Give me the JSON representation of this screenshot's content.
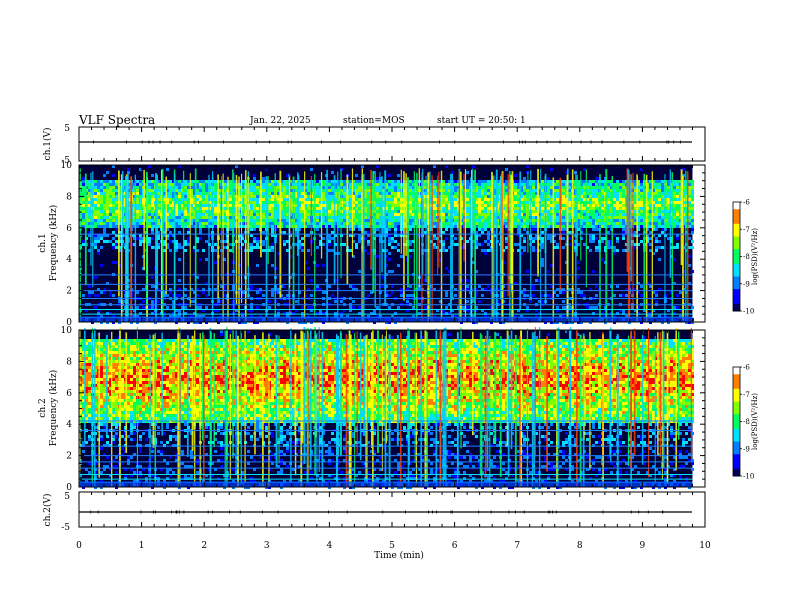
{
  "header": {
    "title": "VLF Spectra",
    "date": "Jan. 22, 2025",
    "station": "station=MOS",
    "start": "start UT =  20:50: 1"
  },
  "chart_data": [
    {
      "type": "line",
      "panel": "ch1-waveform",
      "ylabel": "ch.1(V)",
      "ylim": [
        -5,
        5
      ],
      "yticks": [
        "5",
        "-5"
      ],
      "series": [
        {
          "values": [
            0,
            0
          ]
        }
      ],
      "x": [
        0,
        9.8
      ]
    },
    {
      "type": "heatmap",
      "panel": "ch1-spectrogram",
      "ylabel_line1": "ch.1",
      "ylabel_line2": "Frequency (kHz)",
      "ylim": [
        0,
        10
      ],
      "yticks": [
        "0",
        "2",
        "4",
        "6",
        "8",
        "10"
      ],
      "xlim": [
        0,
        10
      ],
      "data_xmax": 9.8,
      "colorbar": {
        "label": "log(PSD)(V²/Hz)",
        "ticks": [
          "-6",
          "-7",
          "-8",
          "-9",
          "-10"
        ],
        "range": [
          -10,
          -6
        ]
      },
      "features": {
        "upper_band_top_khz": 9.2,
        "upper_band_bottom_khz": 6.0,
        "intense_band_center_khz": 0,
        "line_frequencies_khz": [
          0.3,
          0.5,
          0.8,
          1.1,
          1.5,
          2.0,
          2.4,
          3.0,
          5.6
        ]
      }
    },
    {
      "type": "heatmap",
      "panel": "ch2-spectrogram",
      "ylabel_line1": "ch.2",
      "ylabel_line2": "Frequency (kHz)",
      "ylim": [
        0,
        10
      ],
      "yticks": [
        "0",
        "2",
        "4",
        "6",
        "8",
        "10"
      ],
      "xlim": [
        0,
        10
      ],
      "data_xmax": 9.8,
      "colorbar": {
        "label": "log(PSD)(V²/Hz)",
        "ticks": [
          "-6",
          "-7",
          "-8",
          "-9",
          "-10"
        ],
        "range": [
          -10,
          -6
        ]
      },
      "features": {
        "upper_band_top_khz": 9.6,
        "upper_band_bottom_khz": 4.2,
        "intense_band_center_khz": 7.0,
        "line_frequencies_khz": [
          0.3,
          0.5,
          0.8,
          1.2,
          1.6,
          2.0,
          2.6,
          3.6,
          4.2
        ]
      }
    },
    {
      "type": "line",
      "panel": "ch2-waveform",
      "ylabel": "ch.2(V)",
      "ylim": [
        -5,
        5
      ],
      "yticks": [
        "5",
        "-5"
      ],
      "series": [
        {
          "values": [
            0,
            0
          ]
        }
      ],
      "x": [
        0,
        9.8
      ]
    }
  ],
  "xaxis": {
    "label": "Time (min)",
    "ticks": [
      "0",
      "1",
      "2",
      "3",
      "4",
      "5",
      "6",
      "7",
      "8",
      "9",
      "10"
    ]
  },
  "colorscale": [
    "#00007a",
    "#0000ff",
    "#00a0ff",
    "#00ffd0",
    "#00ff00",
    "#a0ff00",
    "#ffff00",
    "#ffa000",
    "#ff0000",
    "#ffffff"
  ]
}
